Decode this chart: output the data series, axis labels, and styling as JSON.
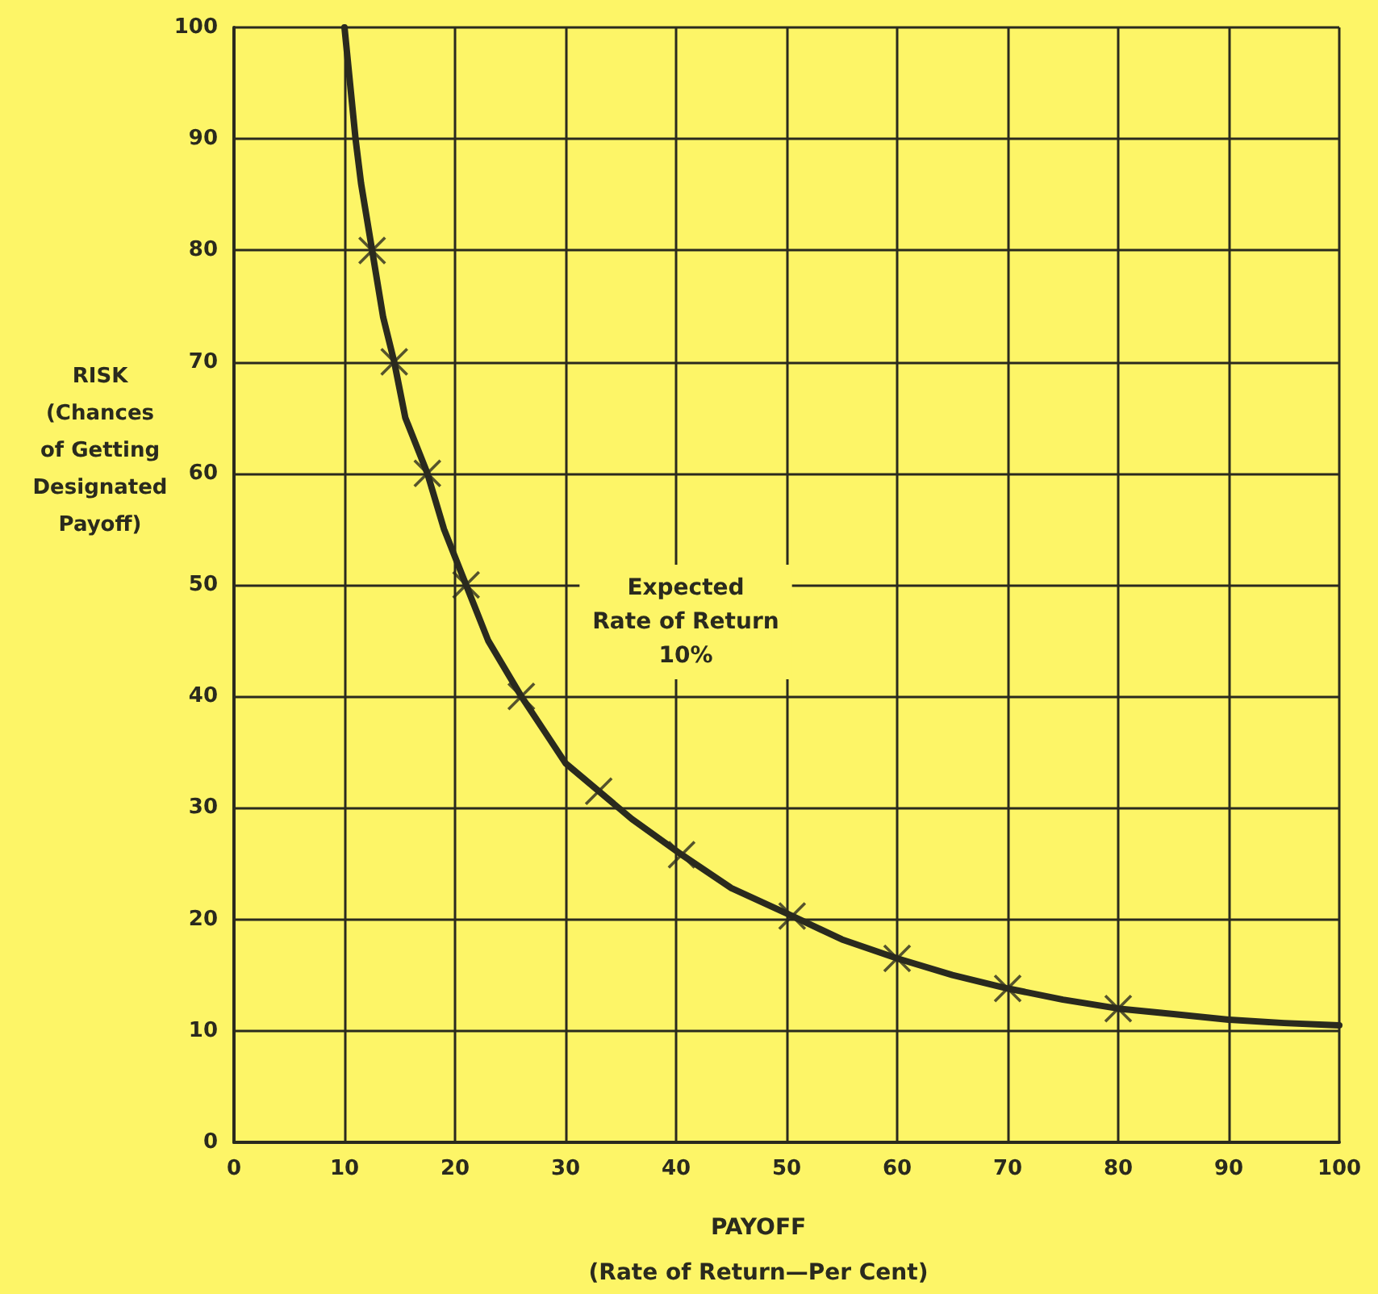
{
  "chart_data": {
    "type": "line",
    "xlabel": "PAYOFF\n(Rate of Return—Per Cent)",
    "ylabel": "RISK\n(Chances\nof Getting\nDesignated\nPayoff)",
    "annotations": [
      "Expected\nRate of Return\n10%"
    ],
    "series": [
      {
        "color": "#2a2a1e",
        "marker": "none",
        "line_style": "solid",
        "x": [
          10,
          10.5,
          11,
          11.5,
          12.5,
          13.5,
          14.5,
          15.5,
          17.5,
          19,
          21,
          23,
          26,
          28,
          30,
          33,
          36,
          40.5,
          45,
          50.5,
          55,
          60,
          65,
          70,
          75,
          80,
          85,
          90,
          95,
          100
        ],
        "values": [
          100,
          95,
          90,
          86,
          80,
          74,
          70,
          65,
          60,
          55,
          50,
          45,
          40,
          37,
          34,
          31.5,
          29,
          25.8,
          22.8,
          20.3,
          18.2,
          16.5,
          15,
          13.8,
          12.8,
          12,
          11.5,
          11,
          10.7,
          10.5
        ]
      },
      {
        "type": "scatter",
        "color": "#2a2a1e",
        "marker": "cross",
        "x": [
          12.5,
          14.5,
          17.5,
          21,
          26,
          33,
          40.5,
          50.5,
          60,
          70,
          80
        ],
        "values": [
          80,
          70,
          60,
          50,
          40,
          31.5,
          25.8,
          20.3,
          16.5,
          13.8,
          12
        ]
      }
    ],
    "xlim": [
      0,
      100
    ],
    "xticks": [
      0,
      10,
      20,
      30,
      40,
      50,
      60,
      70,
      80,
      90,
      100
    ],
    "ylim": [
      0,
      100
    ],
    "yticks": [
      0,
      10,
      20,
      30,
      40,
      50,
      60,
      70,
      80,
      90,
      100
    ],
    "grid": true
  }
}
